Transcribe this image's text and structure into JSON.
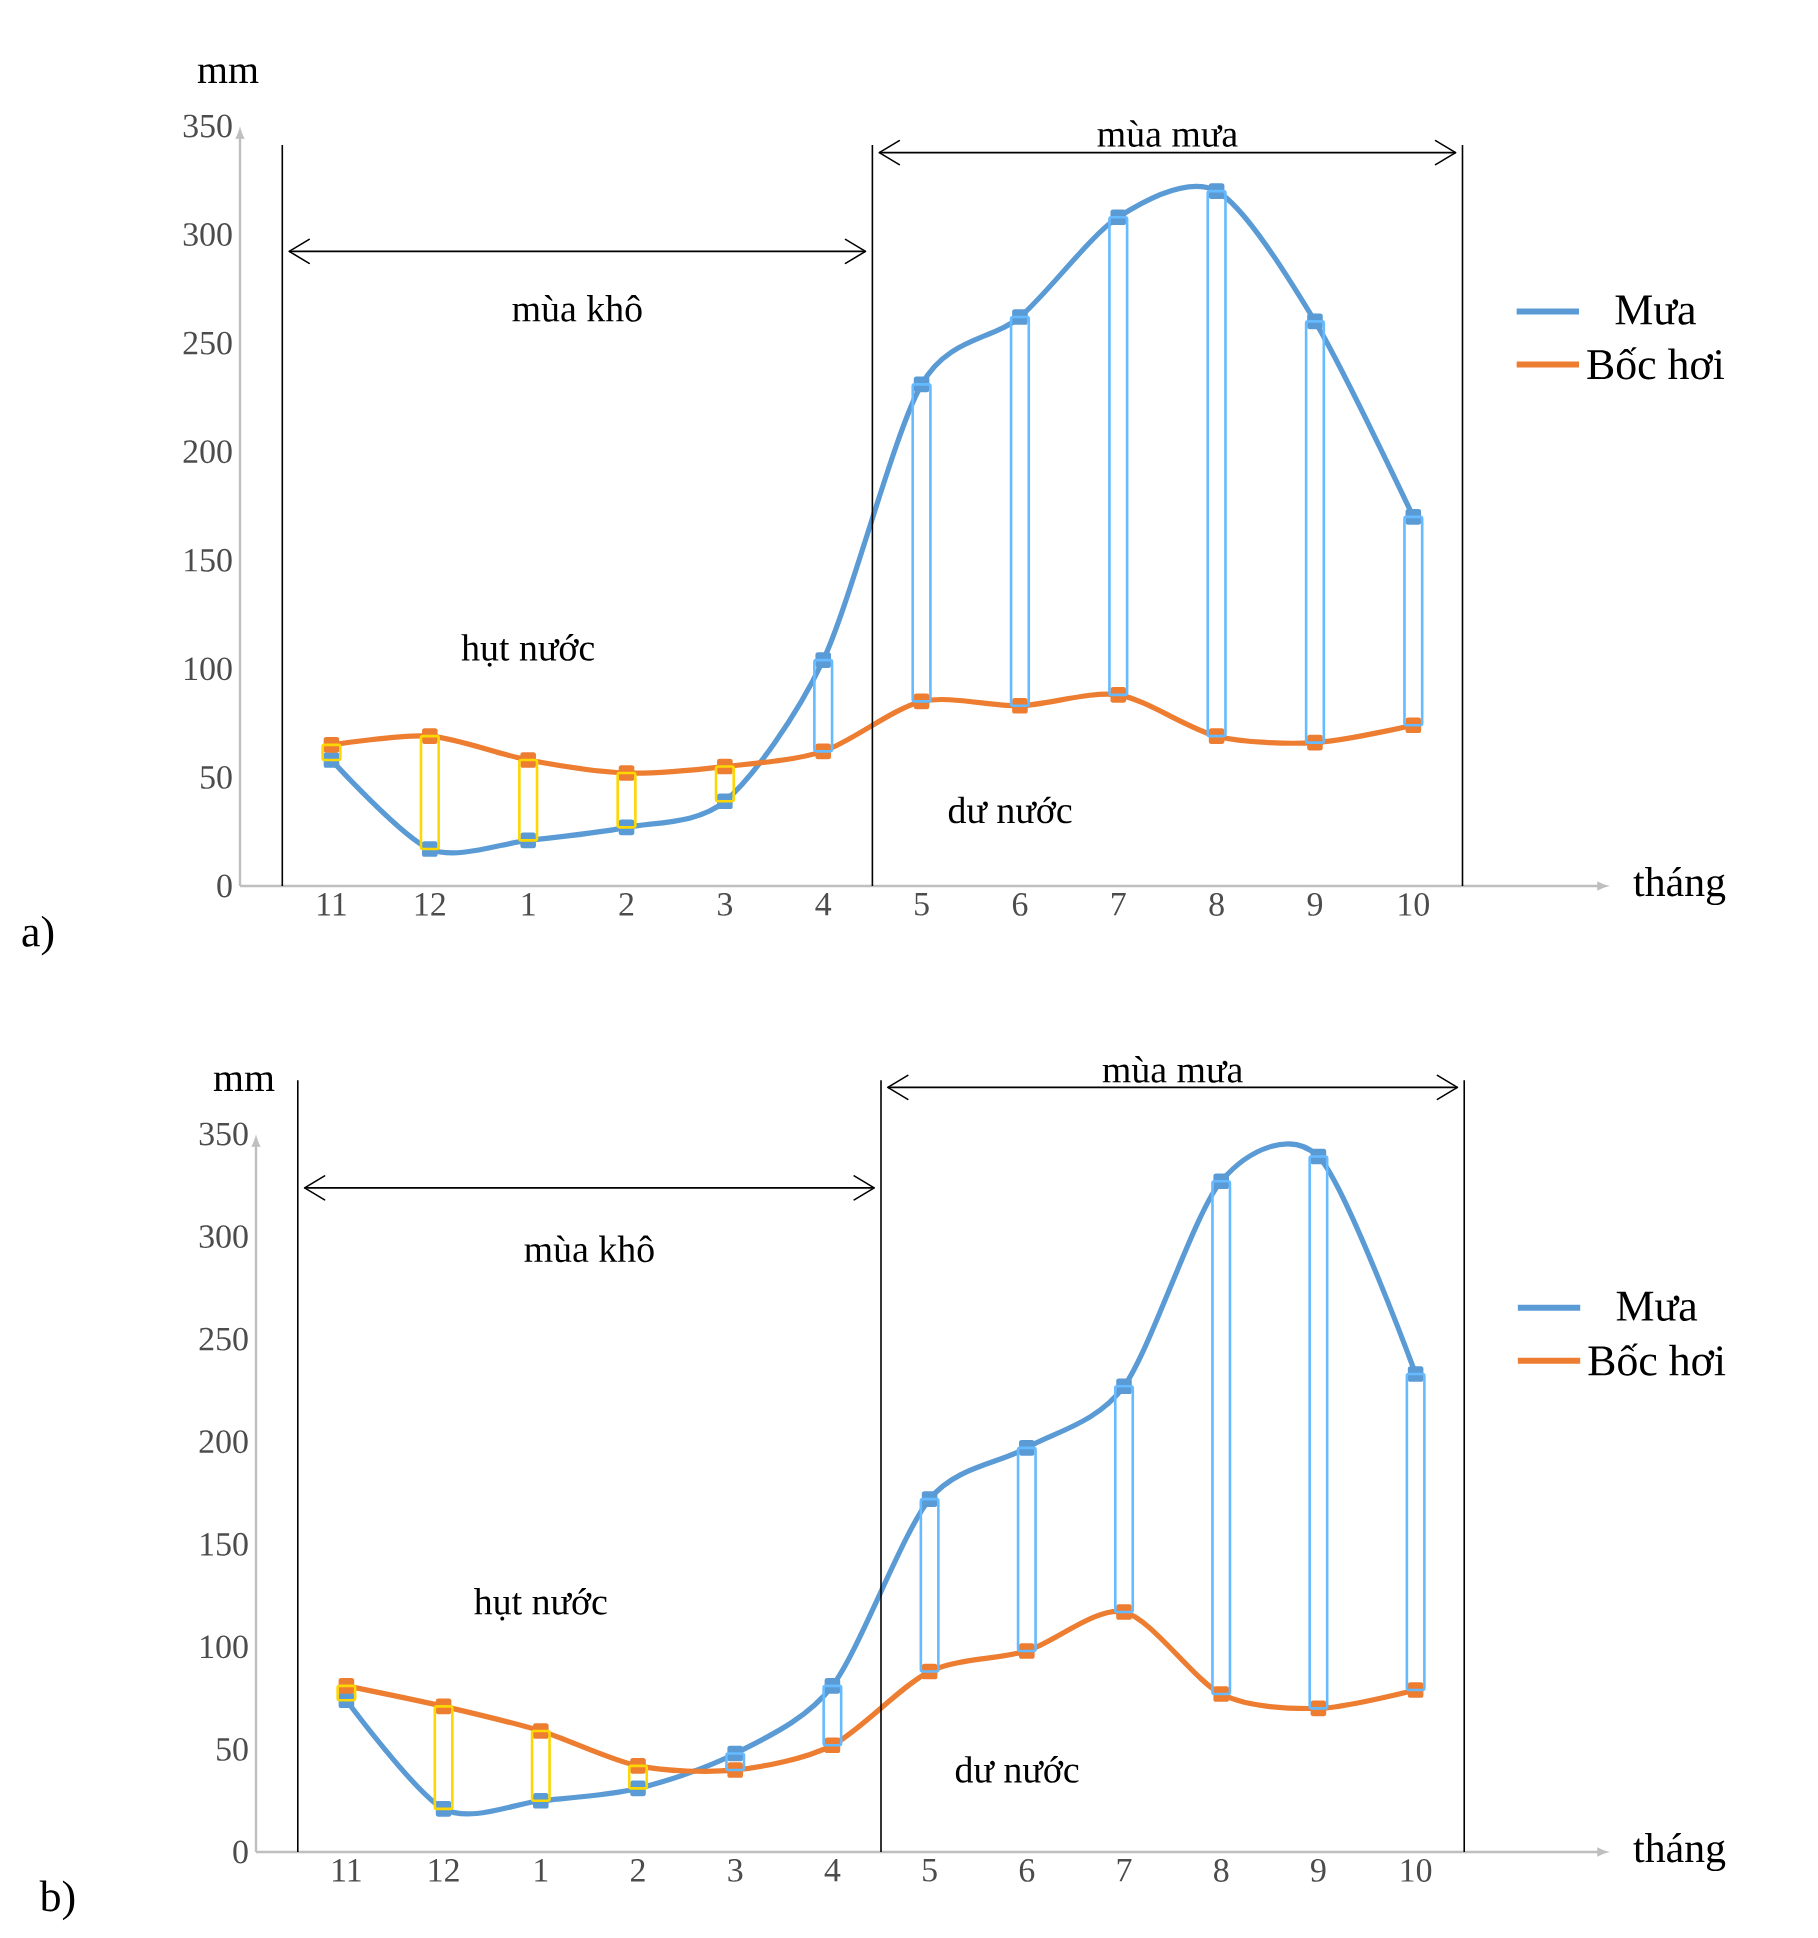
{
  "chart_data": [
    {
      "type": "line",
      "categories": [
        "11",
        "12",
        "1",
        "2",
        "3",
        "4",
        "5",
        "6",
        "7",
        "8",
        "9",
        "10"
      ],
      "xlabel": "tháng",
      "ylabel": "mm",
      "ylim": [
        0,
        350
      ],
      "yticks": [
        0,
        50,
        100,
        150,
        200,
        250,
        300,
        350
      ],
      "legend": "right",
      "marker": "square",
      "series": [
        {
          "name": "Mưa",
          "color": "#5b9bd5",
          "values": [
            58,
            17,
            21,
            27,
            39,
            104,
            231,
            262,
            308,
            320,
            260,
            170
          ]
        },
        {
          "name": "Bốc hơi",
          "color": "#ed7d31",
          "values": [
            65,
            69,
            58,
            52,
            55,
            62,
            85,
            83,
            88,
            69,
            66,
            74
          ]
        }
      ],
      "annotations": [
        "mùa khô",
        "mùa mưa",
        "hụt nước",
        "dư nước",
        "a)"
      ]
    },
    {
      "type": "line",
      "categories": [
        "11",
        "12",
        "1",
        "2",
        "3",
        "4",
        "5",
        "6",
        "7",
        "8",
        "9",
        "10"
      ],
      "xlabel": "tháng",
      "ylabel": "mm",
      "ylim": [
        0,
        350
      ],
      "yticks": [
        0,
        50,
        100,
        150,
        200,
        250,
        300,
        350
      ],
      "legend": "right",
      "marker": "square",
      "series": [
        {
          "name": "Mưa",
          "color": "#5b9bd5",
          "values": [
            74,
            21,
            25,
            31,
            48,
            81,
            172,
            197,
            227,
            327,
            339,
            233
          ]
        },
        {
          "name": "Bốc hơi",
          "color": "#ed7d31",
          "values": [
            81,
            71,
            59,
            42,
            40,
            52,
            88,
            98,
            117,
            77,
            70,
            79
          ]
        }
      ],
      "annotations": [
        "mùa khô",
        "mùa mưa",
        "hụt nước",
        "dư nước",
        "b)"
      ]
    }
  ]
}
